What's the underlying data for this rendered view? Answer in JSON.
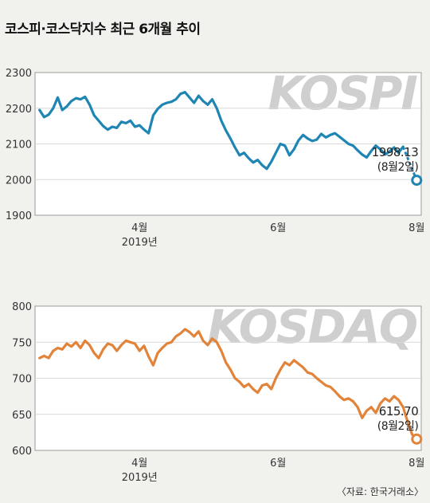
{
  "title": "코스피·코스닥지수 최근 6개월 추이",
  "source": "〈자료: 한국거래소〉",
  "chart_data": [
    {
      "type": "line",
      "name": "KOSPI",
      "watermark": "KOSPI",
      "color": "#1f86b4",
      "ylim": [
        1900,
        2300
      ],
      "yticks": [
        "1900",
        "2000",
        "2100",
        "2200",
        "2300"
      ],
      "yticks_values": [
        1900,
        2000,
        2100,
        2200,
        2300
      ],
      "xticks": [
        {
          "label": "4월",
          "x": 46
        },
        {
          "label": "6월",
          "x": 107
        },
        {
          "label": "8월",
          "x": 168
        }
      ],
      "xrange": [
        0,
        170
      ],
      "year_label": "2019년",
      "last_value": "1998.13",
      "last_date": "(8월2일)",
      "last_point": {
        "x": 168,
        "y": 1998.13
      },
      "x": [
        2,
        4,
        6,
        8,
        10,
        12,
        14,
        16,
        18,
        20,
        22,
        24,
        26,
        28,
        30,
        32,
        34,
        36,
        38,
        40,
        42,
        44,
        46,
        48,
        50,
        52,
        54,
        56,
        58,
        60,
        62,
        64,
        66,
        68,
        70,
        72,
        74,
        76,
        78,
        80,
        82,
        84,
        86,
        88,
        90,
        92,
        94,
        96,
        98,
        100,
        102,
        104,
        106,
        108,
        110,
        112,
        114,
        116,
        118,
        120,
        122,
        124,
        126,
        128,
        130,
        132,
        134,
        136,
        138,
        140,
        142,
        144,
        146,
        148,
        150,
        152,
        154,
        156,
        158,
        160,
        162
      ],
      "values": [
        2195,
        2175,
        2182,
        2200,
        2230,
        2195,
        2205,
        2220,
        2228,
        2225,
        2232,
        2210,
        2180,
        2165,
        2150,
        2140,
        2148,
        2145,
        2162,
        2158,
        2165,
        2148,
        2152,
        2140,
        2130,
        2180,
        2198,
        2210,
        2215,
        2218,
        2225,
        2240,
        2245,
        2230,
        2215,
        2235,
        2220,
        2210,
        2225,
        2200,
        2165,
        2138,
        2115,
        2090,
        2068,
        2075,
        2060,
        2048,
        2055,
        2040,
        2030,
        2050,
        2075,
        2100,
        2095,
        2068,
        2085,
        2110,
        2125,
        2115,
        2108,
        2112,
        2128,
        2118,
        2125,
        2130,
        2120,
        2110,
        2100,
        2095,
        2082,
        2070,
        2062,
        2080,
        2095,
        2085,
        2070,
        2078,
        2090,
        2075,
        2092
      ]
    },
    {
      "type": "line",
      "name": "KOSDAQ",
      "watermark": "KOSDAQ",
      "color": "#e2833a",
      "ylim": [
        600,
        800
      ],
      "yticks": [
        "600",
        "650",
        "700",
        "750",
        "800"
      ],
      "yticks_values": [
        600,
        650,
        700,
        750,
        800
      ],
      "xticks": [
        {
          "label": "4월",
          "x": 46
        },
        {
          "label": "6월",
          "x": 107
        },
        {
          "label": "8월",
          "x": 168
        }
      ],
      "xrange": [
        0,
        170
      ],
      "year_label": "2019년",
      "last_value": "615.70",
      "last_date": "(8월2일)",
      "last_point": {
        "x": 168,
        "y": 615.7
      },
      "x": [
        2,
        4,
        6,
        8,
        10,
        12,
        14,
        16,
        18,
        20,
        22,
        24,
        26,
        28,
        30,
        32,
        34,
        36,
        38,
        40,
        42,
        44,
        46,
        48,
        50,
        52,
        54,
        56,
        58,
        60,
        62,
        64,
        66,
        68,
        70,
        72,
        74,
        76,
        78,
        80,
        82,
        84,
        86,
        88,
        90,
        92,
        94,
        96,
        98,
        100,
        102,
        104,
        106,
        108,
        110,
        112,
        114,
        116,
        118,
        120,
        122,
        124,
        126,
        128,
        130,
        132,
        134,
        136,
        138,
        140,
        142,
        144,
        146,
        148,
        150,
        152,
        154,
        156,
        158,
        160,
        162,
        164,
        166
      ],
      "values": [
        728,
        731,
        728,
        738,
        742,
        740,
        748,
        744,
        750,
        742,
        752,
        746,
        735,
        728,
        740,
        748,
        746,
        738,
        746,
        752,
        750,
        748,
        738,
        745,
        730,
        718,
        735,
        742,
        748,
        750,
        758,
        762,
        768,
        764,
        758,
        765,
        752,
        746,
        755,
        750,
        738,
        722,
        712,
        700,
        695,
        688,
        692,
        685,
        680,
        690,
        692,
        685,
        700,
        712,
        722,
        718,
        725,
        720,
        715,
        708,
        706,
        700,
        695,
        690,
        688,
        682,
        675,
        670,
        672,
        668,
        660,
        645,
        655,
        660,
        652,
        665,
        672,
        668,
        675,
        670,
        660,
        640,
        622
      ]
    }
  ]
}
